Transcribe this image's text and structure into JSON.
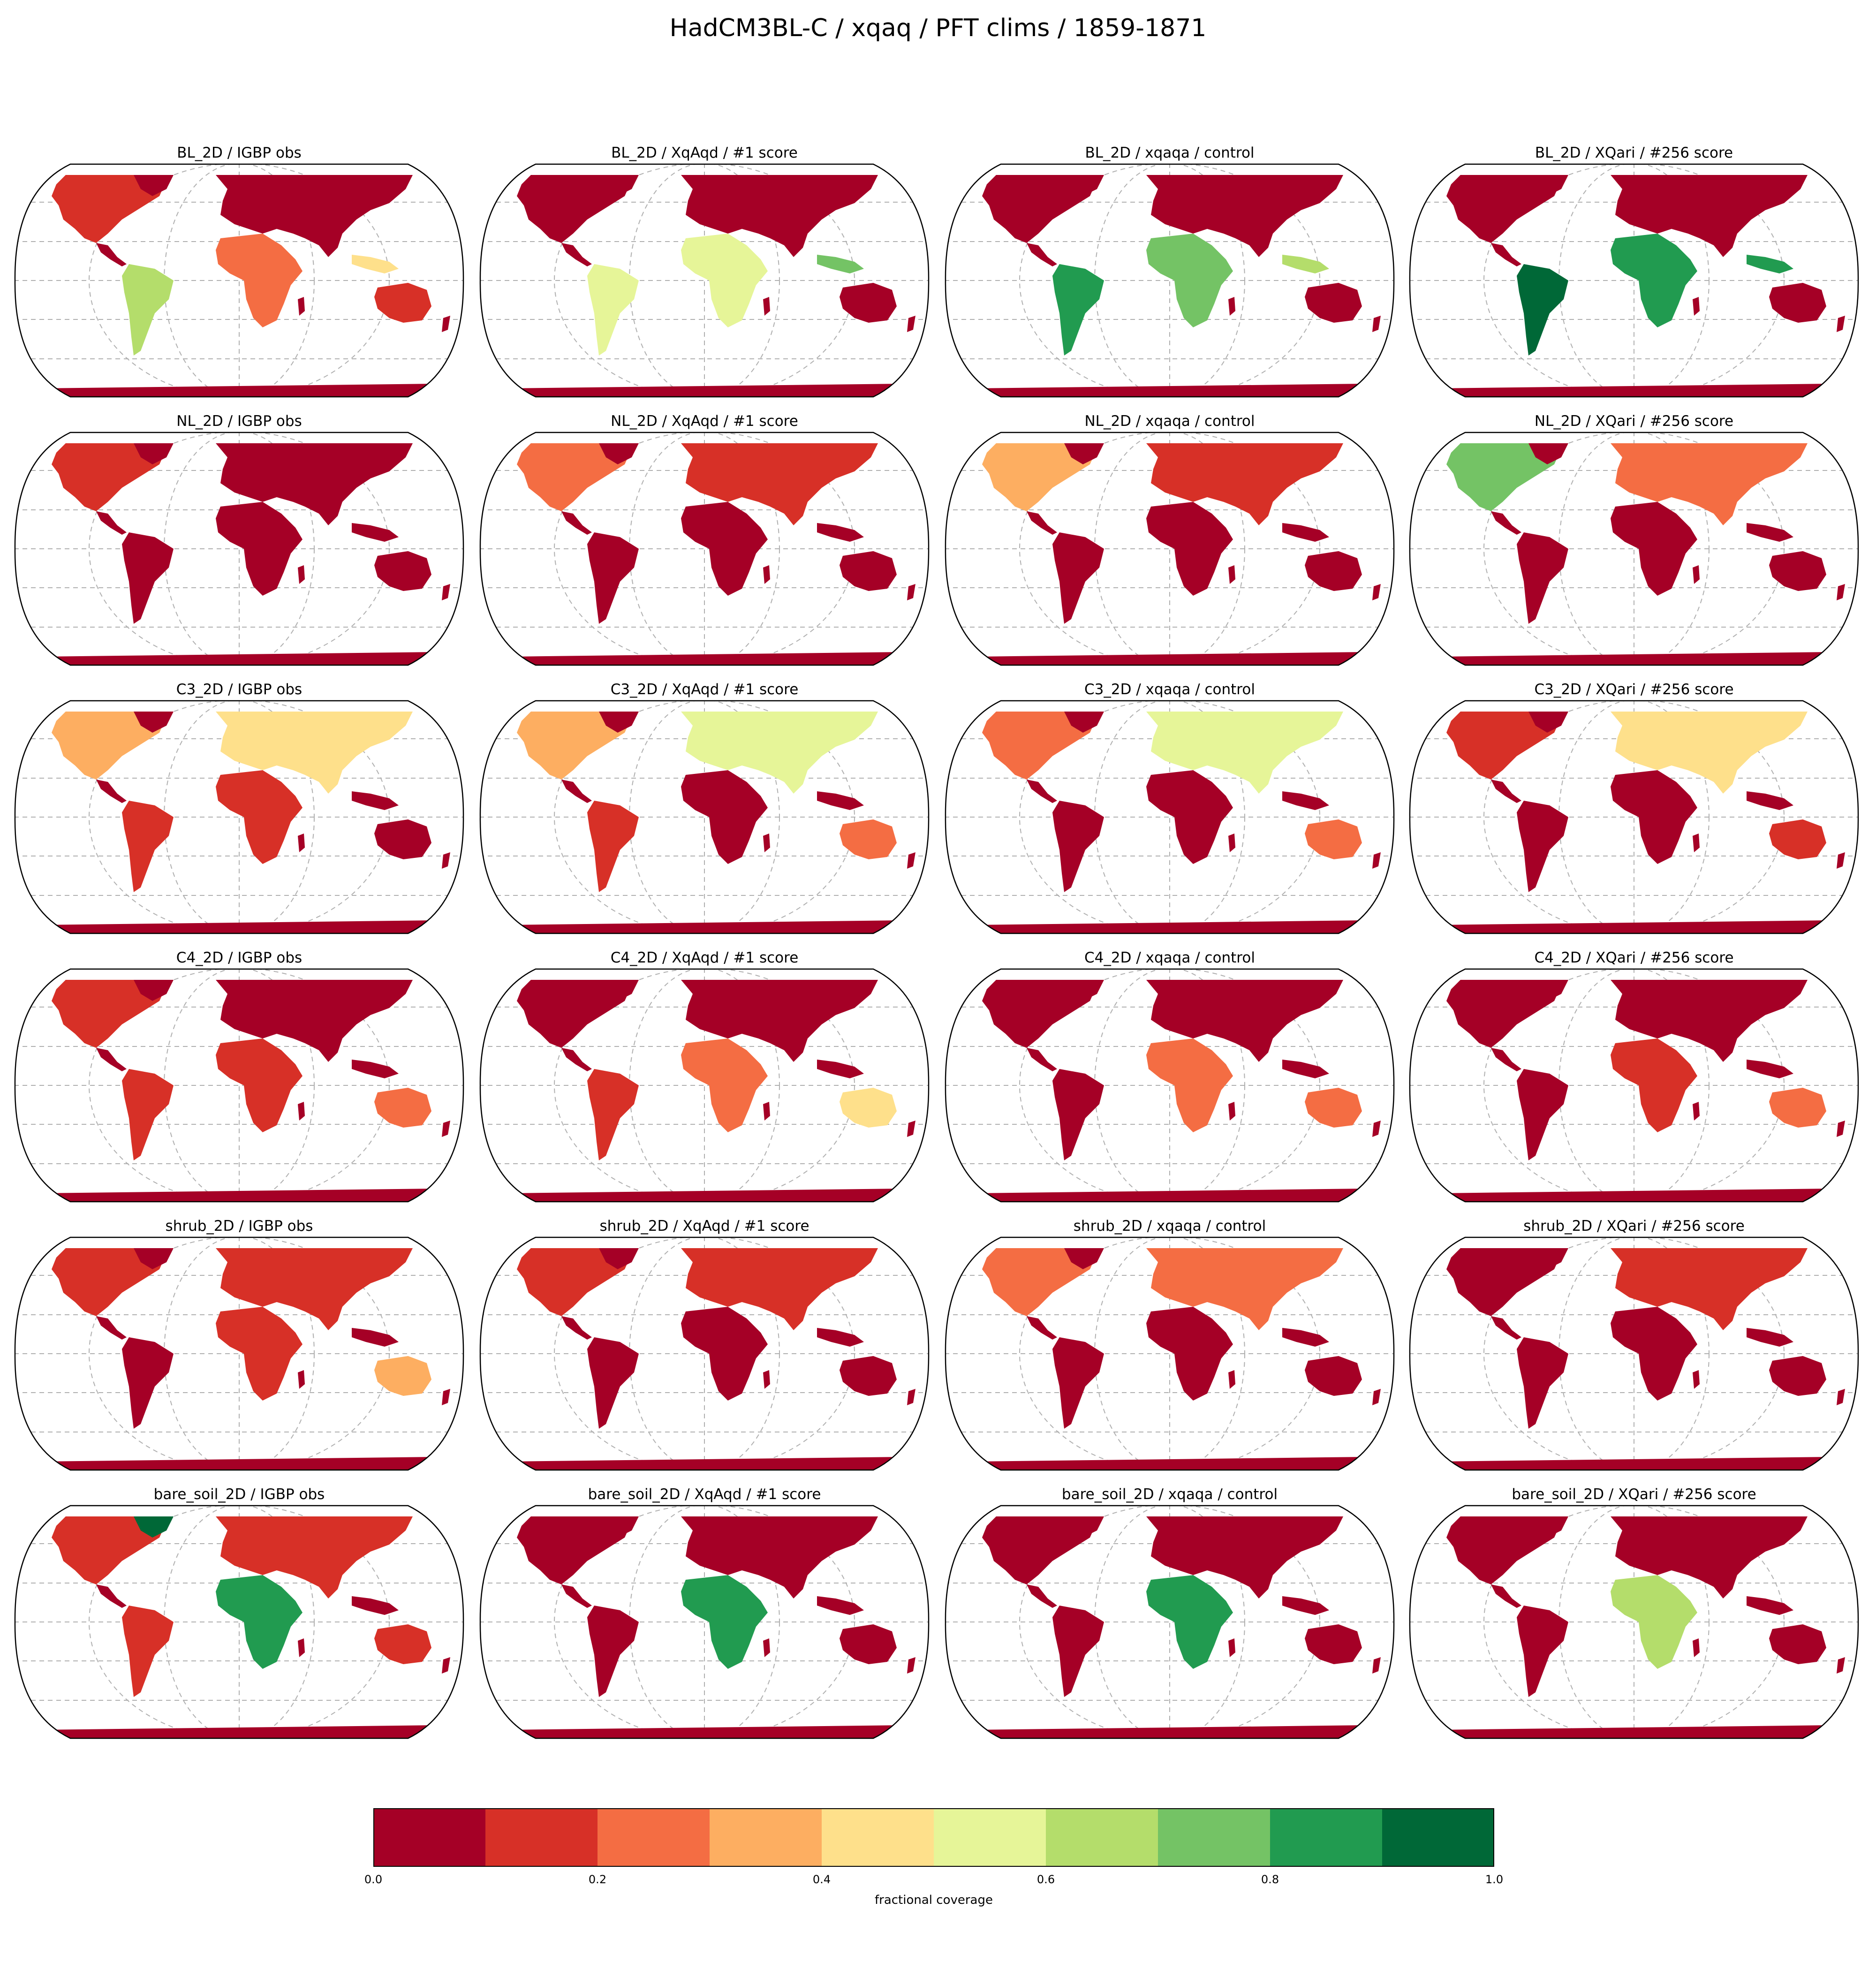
{
  "title": "HadCM3BL-C / xqaq / PFT clims / 1859-1871",
  "colorbar": {
    "label": "fractional coverage",
    "ticks": [
      "0.0",
      "0.2",
      "0.4",
      "0.6",
      "0.8",
      "1.0"
    ],
    "range": [
      0.0,
      1.0
    ],
    "colors": [
      "#a50026",
      "#d73027",
      "#f46d43",
      "#fdae61",
      "#fee08b",
      "#e6f598",
      "#b4dd6b",
      "#74c365",
      "#219b50",
      "#006837"
    ]
  },
  "panels": [
    {
      "title": "BL_2D / IGBP obs"
    },
    {
      "title": "BL_2D / XqAqd / #1 score"
    },
    {
      "title": "BL_2D / xqaqa / control"
    },
    {
      "title": "BL_2D / XQari / #256 score"
    },
    {
      "title": "NL_2D / IGBP obs"
    },
    {
      "title": "NL_2D / XqAqd / #1 score"
    },
    {
      "title": "NL_2D / xqaqa / control"
    },
    {
      "title": "NL_2D / XQari / #256 score"
    },
    {
      "title": "C3_2D / IGBP obs"
    },
    {
      "title": "C3_2D / XqAqd / #1 score"
    },
    {
      "title": "C3_2D / xqaqa / control"
    },
    {
      "title": "C3_2D / XQari / #256 score"
    },
    {
      "title": "C4_2D / IGBP obs"
    },
    {
      "title": "C4_2D / XqAqd / #1 score"
    },
    {
      "title": "C4_2D / xqaqa / control"
    },
    {
      "title": "C4_2D / XQari / #256 score"
    },
    {
      "title": "shrub_2D / IGBP obs"
    },
    {
      "title": "shrub_2D / XqAqd / #1 score"
    },
    {
      "title": "shrub_2D / xqaqa / control"
    },
    {
      "title": "shrub_2D / XQari / #256 score"
    },
    {
      "title": "bare_soil_2D / IGBP obs"
    },
    {
      "title": "bare_soil_2D / XqAqd / #1 score"
    },
    {
      "title": "bare_soil_2D / xqaqa / control"
    },
    {
      "title": "bare_soil_2D / XQari / #256 score"
    }
  ]
}
